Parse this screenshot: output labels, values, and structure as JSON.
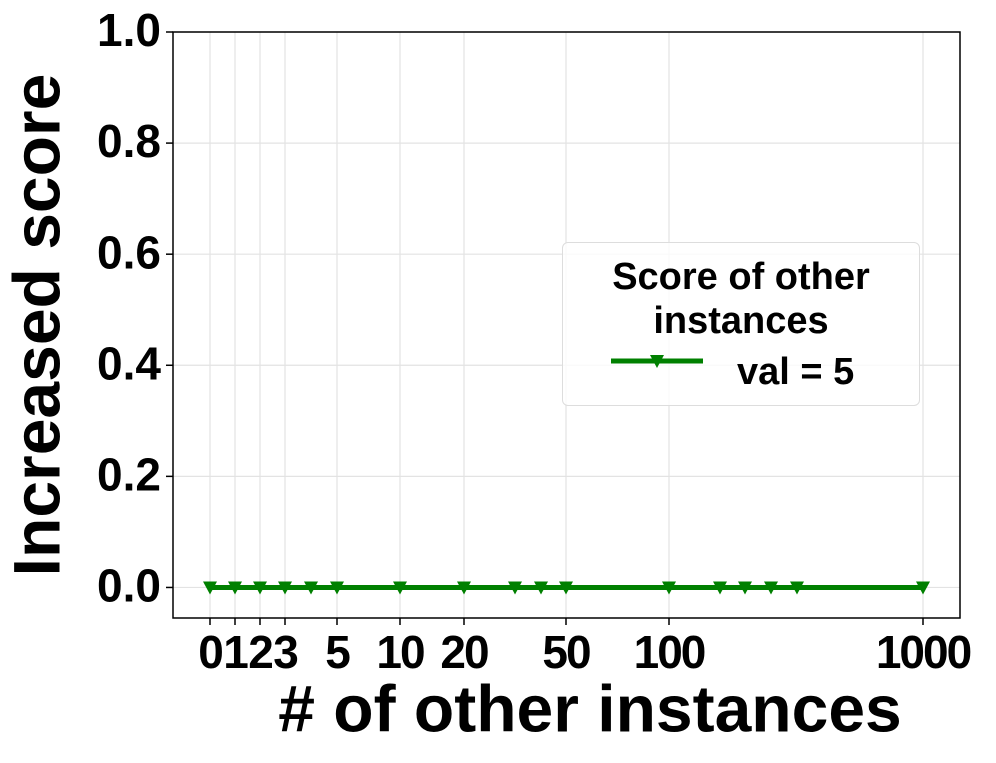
{
  "chart_data": {
    "type": "line",
    "xlabel": "# of other instances",
    "ylabel": "Increased score",
    "categories": [
      "0",
      "1",
      "2",
      "3",
      null,
      "5",
      "10",
      "20",
      null,
      null,
      "50",
      "100",
      null,
      null,
      null,
      null,
      "1000"
    ],
    "series": [
      {
        "name": "val = 5",
        "color": "#008000",
        "marker": "triangle-down",
        "values": [
          0,
          0,
          0,
          0,
          0,
          0,
          0,
          0,
          0,
          0,
          0,
          0,
          0,
          0,
          0,
          0,
          0
        ]
      }
    ],
    "ylim": [
      -0.055,
      1.0
    ],
    "yticks": [
      {
        "value": 0,
        "label": "0.0"
      },
      {
        "value": 0.2,
        "label": "0.2"
      },
      {
        "value": 0.4,
        "label": "0.4"
      },
      {
        "value": 0.6,
        "label": "0.6"
      },
      {
        "value": 0.8,
        "label": "0.8"
      },
      {
        "value": 1,
        "label": "1.0"
      }
    ],
    "grid": true,
    "legend_title": "Score of other instances",
    "legend_loc": "center right"
  }
}
